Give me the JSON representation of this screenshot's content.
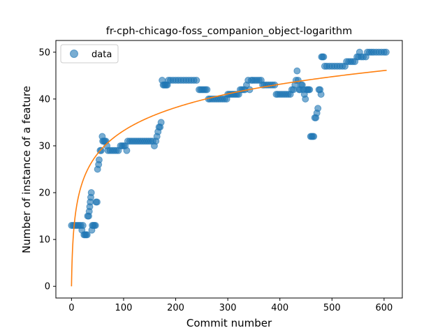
{
  "chart_data": {
    "type": "scatter",
    "title": "fr-cph-chicago-foss_companion_object-logarithm",
    "xlabel": "Commit number",
    "ylabel": "Number of instance of a feature",
    "xlim": [
      -30,
      635
    ],
    "ylim": [
      -2.5,
      52.5
    ],
    "x_ticks": [
      0,
      100,
      200,
      300,
      400,
      500,
      600
    ],
    "y_ticks": [
      0,
      10,
      20,
      30,
      40,
      50
    ],
    "legend": {
      "position": "top-left",
      "entries": [
        "data"
      ]
    },
    "grid": false,
    "colors": {
      "data": "#1f77b4",
      "fit": "#ff7f0e"
    },
    "series": [
      {
        "name": "data",
        "kind": "scatter",
        "points": [
          [
            0,
            13
          ],
          [
            3,
            13
          ],
          [
            6,
            13
          ],
          [
            9,
            13
          ],
          [
            12,
            13
          ],
          [
            15,
            13
          ],
          [
            18,
            13
          ],
          [
            20,
            12
          ],
          [
            22,
            13
          ],
          [
            24,
            11
          ],
          [
            26,
            11
          ],
          [
            28,
            11
          ],
          [
            30,
            11
          ],
          [
            31,
            15
          ],
          [
            33,
            15
          ],
          [
            34,
            16
          ],
          [
            35,
            17
          ],
          [
            36,
            18
          ],
          [
            37,
            19
          ],
          [
            38,
            20
          ],
          [
            39,
            12
          ],
          [
            40,
            13
          ],
          [
            42,
            13
          ],
          [
            44,
            13
          ],
          [
            46,
            13
          ],
          [
            47,
            18
          ],
          [
            49,
            18
          ],
          [
            50,
            25
          ],
          [
            52,
            26
          ],
          [
            53,
            27
          ],
          [
            55,
            29
          ],
          [
            57,
            29
          ],
          [
            59,
            32
          ],
          [
            60,
            31
          ],
          [
            62,
            31
          ],
          [
            64,
            31
          ],
          [
            66,
            31
          ],
          [
            68,
            30
          ],
          [
            70,
            29
          ],
          [
            74,
            29
          ],
          [
            78,
            29
          ],
          [
            82,
            29
          ],
          [
            86,
            29
          ],
          [
            90,
            29
          ],
          [
            94,
            30
          ],
          [
            97,
            30
          ],
          [
            100,
            30
          ],
          [
            103,
            30
          ],
          [
            106,
            29
          ],
          [
            108,
            31
          ],
          [
            112,
            31
          ],
          [
            116,
            31
          ],
          [
            120,
            31
          ],
          [
            124,
            31
          ],
          [
            128,
            31
          ],
          [
            132,
            31
          ],
          [
            136,
            31
          ],
          [
            140,
            31
          ],
          [
            144,
            31
          ],
          [
            148,
            31
          ],
          [
            152,
            31
          ],
          [
            156,
            31
          ],
          [
            159,
            30
          ],
          [
            162,
            31
          ],
          [
            164,
            32
          ],
          [
            166,
            33
          ],
          [
            168,
            34
          ],
          [
            170,
            34
          ],
          [
            172,
            35
          ],
          [
            174,
            44
          ],
          [
            176,
            43
          ],
          [
            178,
            43
          ],
          [
            180,
            43
          ],
          [
            182,
            43
          ],
          [
            184,
            43
          ],
          [
            186,
            44
          ],
          [
            190,
            44
          ],
          [
            195,
            44
          ],
          [
            200,
            44
          ],
          [
            205,
            44
          ],
          [
            210,
            44
          ],
          [
            215,
            44
          ],
          [
            220,
            44
          ],
          [
            225,
            44
          ],
          [
            230,
            44
          ],
          [
            235,
            44
          ],
          [
            240,
            44
          ],
          [
            245,
            42
          ],
          [
            248,
            42
          ],
          [
            251,
            42
          ],
          [
            254,
            42
          ],
          [
            257,
            42
          ],
          [
            260,
            42
          ],
          [
            263,
            40
          ],
          [
            266,
            40
          ],
          [
            270,
            40
          ],
          [
            274,
            40
          ],
          [
            278,
            40
          ],
          [
            282,
            40
          ],
          [
            286,
            40
          ],
          [
            290,
            40
          ],
          [
            294,
            40
          ],
          [
            298,
            40
          ],
          [
            300,
            41
          ],
          [
            303,
            41
          ],
          [
            306,
            41
          ],
          [
            309,
            41
          ],
          [
            312,
            41
          ],
          [
            315,
            41
          ],
          [
            318,
            41
          ],
          [
            321,
            41
          ],
          [
            324,
            42
          ],
          [
            327,
            42
          ],
          [
            330,
            42
          ],
          [
            333,
            42
          ],
          [
            336,
            43
          ],
          [
            339,
            44
          ],
          [
            342,
            42
          ],
          [
            345,
            44
          ],
          [
            348,
            44
          ],
          [
            352,
            44
          ],
          [
            356,
            44
          ],
          [
            360,
            44
          ],
          [
            364,
            44
          ],
          [
            367,
            43
          ],
          [
            370,
            43
          ],
          [
            374,
            43
          ],
          [
            378,
            43
          ],
          [
            382,
            43
          ],
          [
            386,
            43
          ],
          [
            390,
            43
          ],
          [
            393,
            41
          ],
          [
            396,
            41
          ],
          [
            400,
            41
          ],
          [
            404,
            41
          ],
          [
            408,
            41
          ],
          [
            412,
            41
          ],
          [
            416,
            41
          ],
          [
            420,
            41
          ],
          [
            423,
            42
          ],
          [
            426,
            42
          ],
          [
            429,
            43
          ],
          [
            431,
            44
          ],
          [
            433,
            46
          ],
          [
            435,
            44
          ],
          [
            437,
            42
          ],
          [
            439,
            42
          ],
          [
            441,
            43
          ],
          [
            443,
            43
          ],
          [
            445,
            42
          ],
          [
            447,
            41
          ],
          [
            449,
            40
          ],
          [
            451,
            42
          ],
          [
            453,
            42
          ],
          [
            455,
            42
          ],
          [
            457,
            42
          ],
          [
            459,
            32
          ],
          [
            461,
            32
          ],
          [
            463,
            32
          ],
          [
            465,
            32
          ],
          [
            467,
            36
          ],
          [
            469,
            36
          ],
          [
            471,
            37
          ],
          [
            473,
            38
          ],
          [
            475,
            42
          ],
          [
            477,
            42
          ],
          [
            479,
            41
          ],
          [
            480,
            49
          ],
          [
            482,
            49
          ],
          [
            484,
            49
          ],
          [
            486,
            47
          ],
          [
            490,
            47
          ],
          [
            495,
            47
          ],
          [
            500,
            47
          ],
          [
            505,
            47
          ],
          [
            510,
            47
          ],
          [
            515,
            47
          ],
          [
            520,
            47
          ],
          [
            525,
            47
          ],
          [
            528,
            48
          ],
          [
            532,
            48
          ],
          [
            536,
            48
          ],
          [
            540,
            48
          ],
          [
            544,
            48
          ],
          [
            548,
            49
          ],
          [
            551,
            49
          ],
          [
            553,
            50
          ],
          [
            556,
            49
          ],
          [
            560,
            49
          ],
          [
            565,
            49
          ],
          [
            568,
            50
          ],
          [
            572,
            50
          ],
          [
            576,
            50
          ],
          [
            580,
            50
          ],
          [
            585,
            50
          ],
          [
            590,
            50
          ],
          [
            595,
            50
          ],
          [
            600,
            50
          ],
          [
            604,
            50
          ]
        ]
      },
      {
        "kind": "line",
        "model": "y = a*ln(1+x)",
        "a": 7.2,
        "x_range": [
          0,
          605
        ]
      }
    ]
  }
}
